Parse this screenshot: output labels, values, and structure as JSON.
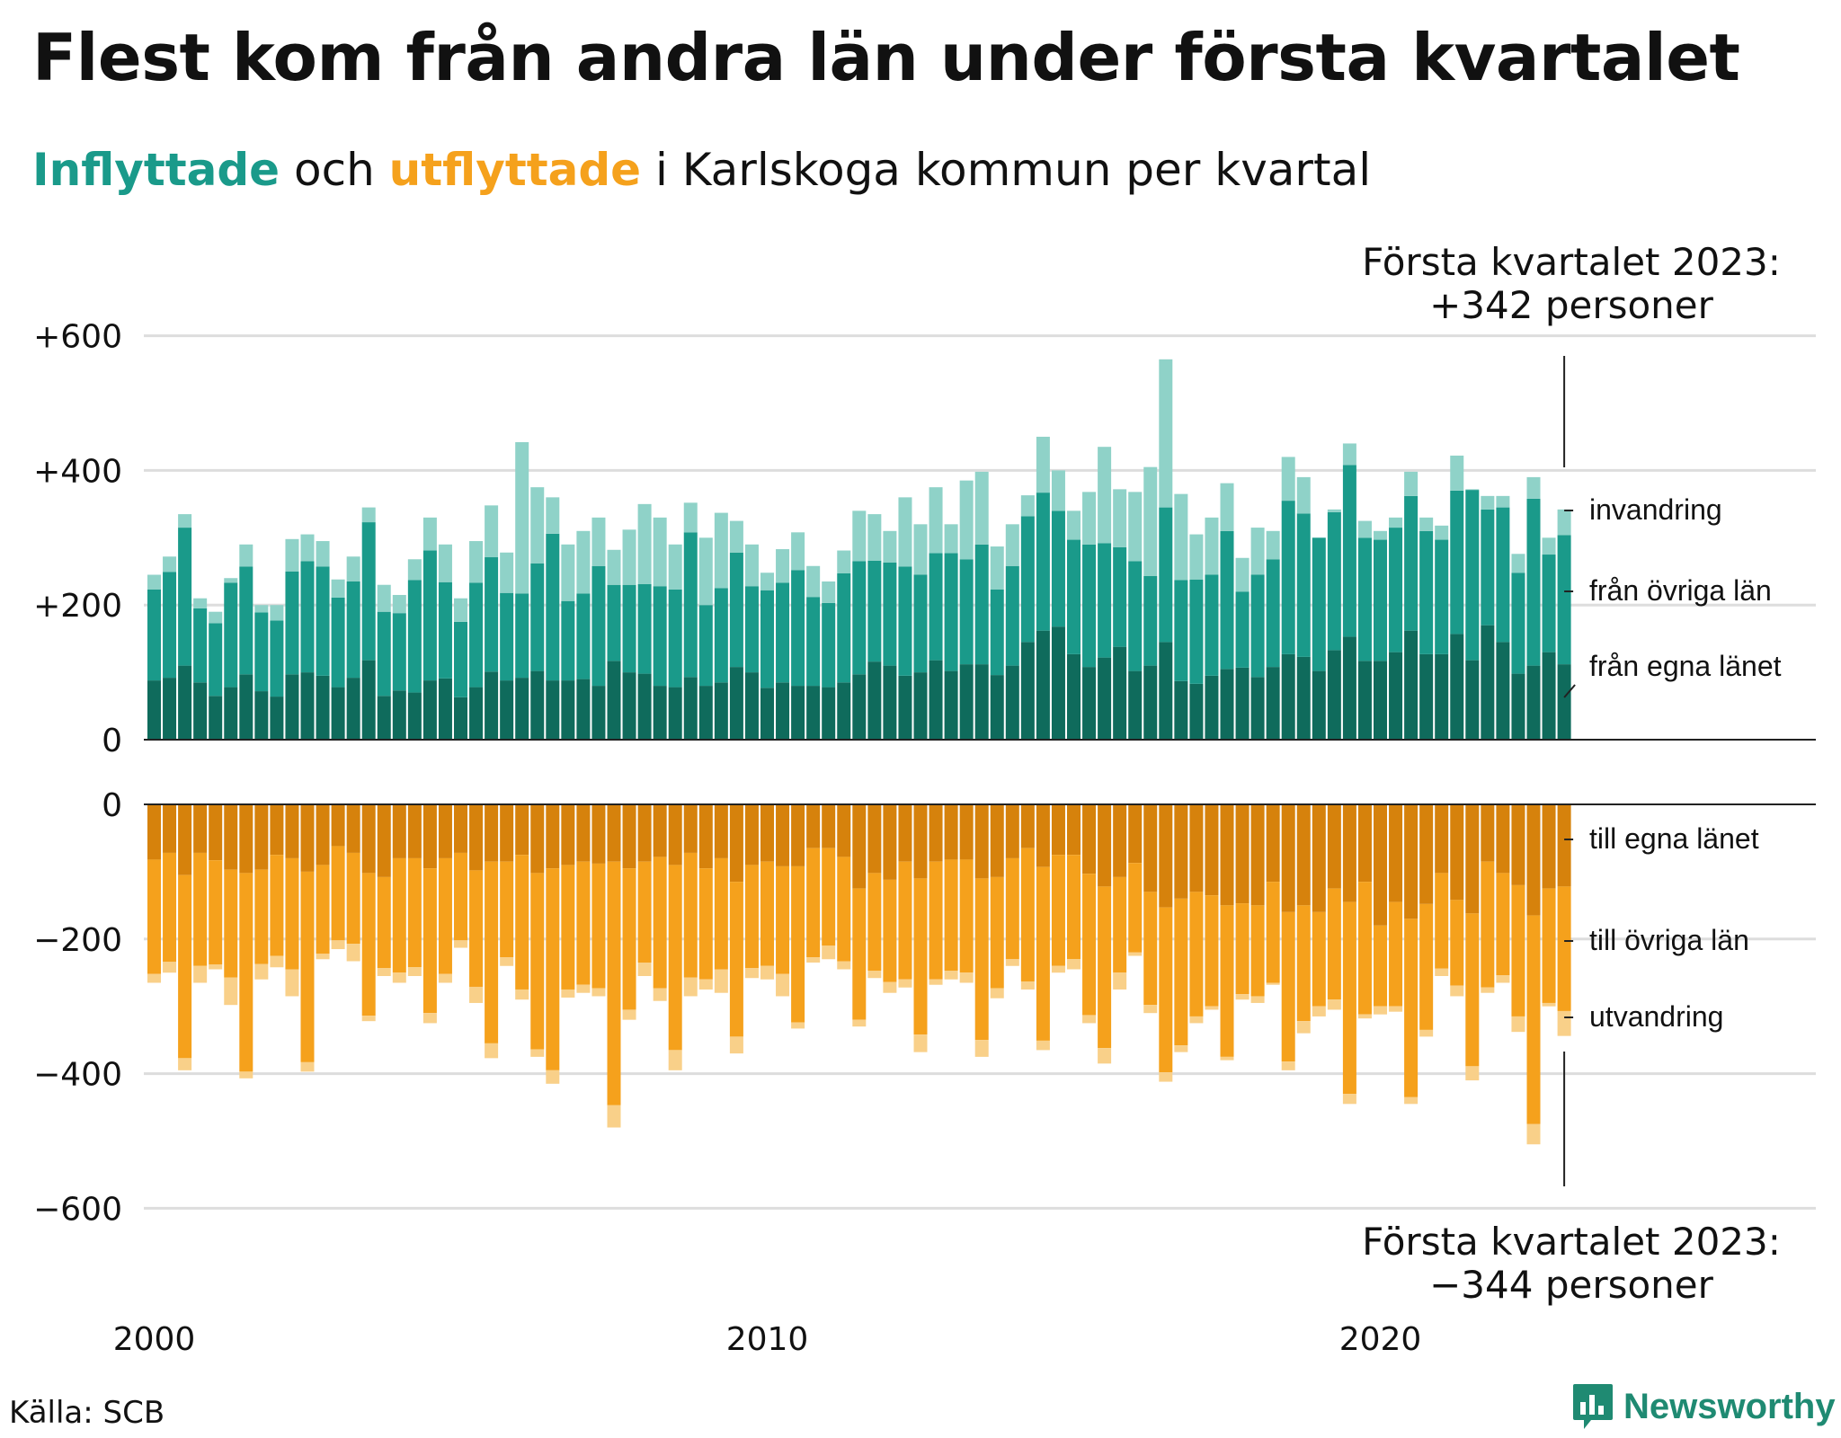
{
  "title": "Flest kom från andra län under första kvartalet",
  "subtitle": {
    "in_word": "Inflyttade",
    "mid": " och ",
    "out_word": "utflyttade",
    "rest": " i Karlskoga kommun per kvartal"
  },
  "source": "Källa: SCB",
  "logo": "Newsworthy",
  "colors": {
    "in_own_county": "#0f6b5c",
    "in_other_counties": "#1a9a8a",
    "in_immigration": "#8fd2c8",
    "out_own_county": "#d6820c",
    "out_other_counties": "#f5a11c",
    "out_emigration": "#f9d089",
    "grid": "#dddddd",
    "axis": "#222222"
  },
  "chart_data": {
    "type": "bar",
    "stacked": true,
    "x_start": "2000 Q1",
    "x_ticks": [
      "2000",
      "2010",
      "2020"
    ],
    "upper_axis": {
      "ticks": [
        0,
        200,
        400,
        600
      ],
      "tick_labels": [
        "0",
        "+200",
        "+400",
        "+600"
      ],
      "ylim": [
        0,
        600
      ]
    },
    "lower_axis": {
      "ticks": [
        0,
        -200,
        -400,
        -600
      ],
      "tick_labels": [
        "0",
        "−200",
        "−400",
        "−600"
      ],
      "ylim": [
        -600,
        0
      ]
    },
    "in_total": [
      245,
      272,
      335,
      210,
      190,
      240,
      290,
      200,
      200,
      298,
      305,
      295,
      238,
      272,
      345,
      230,
      215,
      268,
      330,
      290,
      210,
      295,
      348,
      278,
      442,
      375,
      360,
      290,
      310,
      330,
      282,
      312,
      350,
      330,
      290,
      352,
      300,
      337,
      325,
      290,
      248,
      283,
      308,
      258,
      235,
      281,
      340,
      335,
      310,
      360,
      320,
      375,
      320,
      385,
      398,
      287,
      320,
      363,
      450,
      400,
      340,
      368,
      435,
      372,
      368,
      405,
      565,
      365,
      305,
      330,
      381,
      270,
      315,
      310,
      420,
      390,
      300,
      342,
      440,
      325,
      310,
      330,
      398,
      330,
      318,
      422,
      372,
      362,
      362,
      276,
      390,
      300,
      342
    ],
    "in_series": [
      {
        "name": "från egna länet",
        "values": [
          88,
          92,
          110,
          85,
          65,
          78,
          97,
          72,
          64,
          97,
          100,
          95,
          78,
          92,
          118,
          65,
          73,
          70,
          88,
          91,
          63,
          78,
          101,
          88,
          92,
          102,
          88,
          88,
          90,
          80,
          117,
          100,
          98,
          80,
          78,
          93,
          80,
          85,
          108,
          100,
          77,
          85,
          80,
          80,
          78,
          85,
          97,
          116,
          110,
          95,
          100,
          118,
          102,
          112,
          112,
          96,
          110,
          145,
          162,
          168,
          127,
          108,
          122,
          138,
          102,
          110,
          145,
          87,
          83,
          95,
          105,
          107,
          93,
          108,
          127,
          123,
          102,
          133,
          153,
          117,
          117,
          130,
          162,
          127,
          127,
          157,
          118,
          170,
          145,
          98,
          110,
          130,
          112
        ]
      },
      {
        "name": "från övriga län",
        "values": [
          135,
          157,
          205,
          110,
          108,
          155,
          160,
          117,
          113,
          153,
          165,
          162,
          133,
          143,
          205,
          125,
          115,
          167,
          193,
          143,
          112,
          155,
          170,
          130,
          125,
          160,
          218,
          118,
          127,
          178,
          113,
          130,
          133,
          148,
          145,
          215,
          120,
          140,
          170,
          128,
          145,
          148,
          172,
          132,
          125,
          162,
          168,
          150,
          153,
          162,
          145,
          159,
          175,
          156,
          178,
          127,
          148,
          187,
          205,
          172,
          170,
          182,
          170,
          148,
          163,
          133,
          200,
          150,
          155,
          150,
          205,
          113,
          152,
          160,
          228,
          213,
          198,
          205,
          255,
          183,
          180,
          185,
          200,
          183,
          170,
          213,
          253,
          172,
          200,
          150,
          248,
          145,
          192
        ]
      },
      {
        "name": "invandring",
        "values": [
          22,
          23,
          20,
          15,
          17,
          7,
          33,
          11,
          23,
          48,
          40,
          38,
          27,
          37,
          22,
          40,
          27,
          31,
          49,
          56,
          35,
          62,
          77,
          60,
          225,
          113,
          54,
          84,
          93,
          72,
          52,
          82,
          119,
          102,
          67,
          44,
          100,
          112,
          47,
          62,
          26,
          50,
          56,
          46,
          32,
          34,
          75,
          69,
          47,
          103,
          75,
          98,
          43,
          117,
          108,
          64,
          62,
          31,
          83,
          60,
          43,
          78,
          143,
          86,
          103,
          162,
          220,
          128,
          67,
          85,
          71,
          50,
          70,
          42,
          65,
          54,
          0,
          4,
          32,
          25,
          13,
          15,
          36,
          20,
          21,
          52,
          1,
          20,
          17,
          28,
          32,
          25,
          38
        ]
      }
    ],
    "out_total": [
      265,
      250,
      395,
      265,
      245,
      298,
      407,
      260,
      242,
      285,
      397,
      230,
      215,
      233,
      322,
      255,
      265,
      255,
      325,
      265,
      213,
      295,
      377,
      240,
      290,
      375,
      415,
      287,
      280,
      285,
      480,
      320,
      255,
      292,
      395,
      285,
      275,
      280,
      370,
      258,
      260,
      285,
      333,
      235,
      230,
      245,
      330,
      258,
      280,
      272,
      368,
      268,
      260,
      265,
      375,
      288,
      240,
      275,
      365,
      250,
      245,
      325,
      385,
      275,
      225,
      310,
      412,
      368,
      325,
      305,
      380,
      290,
      295,
      268,
      395,
      340,
      315,
      305,
      445,
      318,
      312,
      308,
      445,
      345,
      255,
      285,
      410,
      280,
      265,
      338,
      505,
      300,
      344
    ],
    "out_series": [
      {
        "name": "till egna länet",
        "values": [
          82,
          72,
          105,
          72,
          83,
          97,
          102,
          97,
          75,
          80,
          100,
          90,
          62,
          72,
          102,
          108,
          80,
          80,
          95,
          80,
          72,
          98,
          85,
          85,
          75,
          102,
          95,
          90,
          85,
          88,
          85,
          95,
          85,
          78,
          90,
          72,
          95,
          80,
          115,
          90,
          85,
          92,
          92,
          65,
          65,
          78,
          125,
          102,
          112,
          85,
          110,
          85,
          82,
          82,
          110,
          108,
          80,
          65,
          93,
          75,
          75,
          103,
          122,
          108,
          87,
          130,
          153,
          140,
          130,
          135,
          150,
          147,
          150,
          115,
          160,
          150,
          160,
          125,
          145,
          115,
          180,
          145,
          170,
          148,
          102,
          142,
          162,
          85,
          102,
          120,
          165,
          125,
          122
        ]
      },
      {
        "name": "till övriga län",
        "values": [
          170,
          162,
          272,
          168,
          155,
          160,
          295,
          140,
          150,
          165,
          283,
          132,
          140,
          135,
          212,
          135,
          170,
          162,
          215,
          172,
          130,
          173,
          270,
          142,
          200,
          262,
          300,
          185,
          183,
          185,
          362,
          210,
          150,
          195,
          275,
          185,
          165,
          165,
          230,
          153,
          155,
          160,
          232,
          162,
          145,
          155,
          195,
          145,
          152,
          175,
          232,
          175,
          165,
          168,
          240,
          165,
          150,
          198,
          258,
          165,
          155,
          210,
          240,
          142,
          133,
          168,
          245,
          218,
          185,
          165,
          225,
          135,
          135,
          150,
          222,
          172,
          140,
          165,
          285,
          197,
          120,
          155,
          265,
          187,
          142,
          127,
          227,
          187,
          152,
          195,
          310,
          170,
          185
        ]
      },
      {
        "name": "utvandring",
        "values": [
          13,
          16,
          18,
          25,
          7,
          41,
          10,
          23,
          17,
          40,
          14,
          8,
          13,
          26,
          8,
          12,
          15,
          13,
          15,
          13,
          11,
          24,
          22,
          13,
          15,
          11,
          20,
          12,
          12,
          12,
          33,
          15,
          20,
          19,
          30,
          28,
          15,
          35,
          25,
          15,
          20,
          33,
          9,
          8,
          20,
          12,
          10,
          11,
          16,
          12,
          26,
          8,
          13,
          15,
          25,
          15,
          10,
          12,
          14,
          10,
          15,
          12,
          23,
          25,
          5,
          12,
          14,
          10,
          10,
          5,
          5,
          8,
          10,
          3,
          13,
          18,
          15,
          15,
          15,
          6,
          12,
          8,
          10,
          10,
          11,
          16,
          21,
          8,
          11,
          23,
          30,
          5,
          37
        ]
      }
    ],
    "series_labels": {
      "in": [
        "invandring",
        "från övriga län",
        "från egna länet"
      ],
      "out": [
        "till egna länet",
        "till övriga län",
        "utvandring"
      ]
    },
    "annotations": {
      "upper": [
        "Första kvartalet 2023:",
        "+342 personer"
      ],
      "lower": [
        "Första kvartalet 2023:",
        "−344 personer"
      ]
    }
  }
}
